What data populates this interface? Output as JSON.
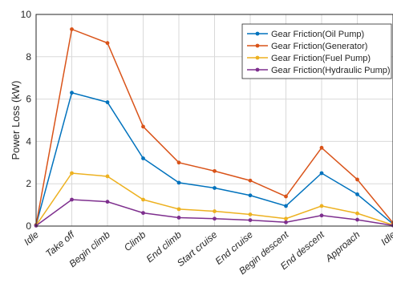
{
  "chart_data": {
    "type": "line",
    "title": "",
    "xlabel": "",
    "ylabel": "Power Loss (kW)",
    "categories": [
      "Idle",
      "Take off",
      "Begin climb",
      "Climb",
      "End climb",
      "Start cruise",
      "End cruise",
      "Begin descent",
      "End descent",
      "Approach",
      "Idle"
    ],
    "ylim": [
      0,
      10
    ],
    "yticks": [
      "0",
      "2",
      "4",
      "6",
      "8",
      "10"
    ],
    "grid": true,
    "legend_position": "top-right",
    "series": [
      {
        "name": "Gear Friction(Oil Pump)",
        "color": "#0072BD",
        "marker": "dot",
        "values": [
          0.05,
          6.3,
          5.85,
          3.2,
          2.05,
          1.8,
          1.45,
          0.95,
          2.5,
          1.5,
          0.1
        ]
      },
      {
        "name": "Gear Friction(Generator)",
        "color": "#D95319",
        "marker": "dot",
        "values": [
          0.05,
          9.3,
          8.65,
          4.7,
          3.0,
          2.6,
          2.15,
          1.4,
          3.7,
          2.2,
          0.15
        ]
      },
      {
        "name": "Gear Friction(Fuel Pump)",
        "color": "#EDB120",
        "marker": "dot",
        "values": [
          0.03,
          2.5,
          2.35,
          1.25,
          0.8,
          0.7,
          0.55,
          0.35,
          0.95,
          0.6,
          0.05
        ]
      },
      {
        "name": "Gear Friction(Hydraulic Pump)",
        "color": "#7E2F8E",
        "marker": "dot",
        "values": [
          0.02,
          1.25,
          1.15,
          0.62,
          0.4,
          0.35,
          0.28,
          0.18,
          0.5,
          0.3,
          0.03
        ]
      }
    ]
  }
}
